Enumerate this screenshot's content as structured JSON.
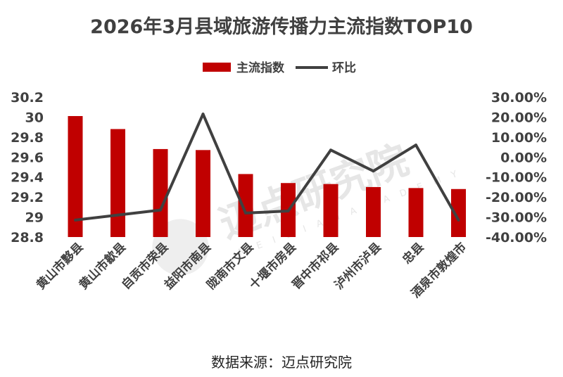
{
  "chart_data": {
    "type": "bar",
    "title": "2026年3月县域旅游传播力主流指数TOP10",
    "categories": [
      "黄山市黟县",
      "黄山市歙县",
      "自贡市荣县",
      "益阳市南县",
      "陇南市文县",
      "十堰市房县",
      "晋中市祁县",
      "泸州市泸县",
      "忠县",
      "酒泉市敦煌市"
    ],
    "series": [
      {
        "name": "主流指数",
        "type": "bar",
        "axis": "left",
        "color": "#c00000",
        "values": [
          30.01,
          29.88,
          29.68,
          29.67,
          29.43,
          29.34,
          29.33,
          29.3,
          29.29,
          29.28
        ]
      },
      {
        "name": "环比",
        "type": "line",
        "axis": "right",
        "color": "#404040",
        "values": [
          -31.5,
          -29.0,
          -26.5,
          21.5,
          -28.0,
          -27.0,
          3.5,
          -7.0,
          6.0,
          -31.5
        ]
      }
    ],
    "y_left": {
      "min": 28.8,
      "max": 30.2,
      "ticks": [
        "30.2",
        "30",
        "29.8",
        "29.6",
        "29.4",
        "29.2",
        "29",
        "28.8"
      ]
    },
    "y_right": {
      "min": -40,
      "max": 30,
      "ticks": [
        "30.00%",
        "20.00%",
        "10.00%",
        "0.00%",
        "-10.00%",
        "-20.00%",
        "-30.00%",
        "-40.00%"
      ]
    },
    "legend_position": "top-center",
    "grid": false
  },
  "source_text": "数据来源：迈点研究院",
  "watermark": {
    "text": "迈点研究院",
    "sub": "M E I D I A N  A C A D E M Y"
  }
}
